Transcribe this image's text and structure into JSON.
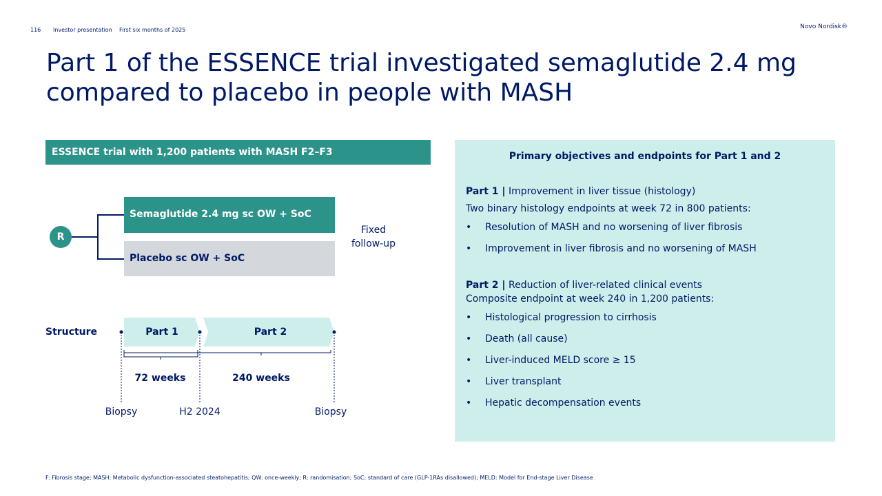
{
  "header": {
    "page_number": "116",
    "doc_type": "Investor presentation",
    "period": "First six months of 2025",
    "brand": "Novo Nordisk®"
  },
  "title": "Part 1 of the ESSENCE trial investigated semaglutide 2.4 mg compared to placebo in people with MASH",
  "trial": {
    "bar_label": "ESSENCE trial with 1,200 patients with MASH F2–F3",
    "randomisation_marker": "R",
    "arms": [
      "Semaglutide 2.4 mg sc OW + SoC",
      "Placebo sc OW + SoC"
    ],
    "followup_line1": "Fixed",
    "followup_line2": "follow-up",
    "structure_label": "Structure",
    "parts": [
      "Part 1",
      "Part 2"
    ],
    "durations": [
      "72 weeks",
      "240 weeks"
    ],
    "milestones": [
      "Biopsy",
      "H2 2024",
      "Biopsy"
    ]
  },
  "objectives": {
    "heading": "Primary objectives and endpoints for Part 1 and 2",
    "part1": {
      "label": "Part 1 |",
      "title": "Improvement in liver tissue (histology)",
      "intro": "Two binary histology endpoints at week 72 in 800 patients:",
      "bullets": [
        "Resolution of MASH and no worsening of liver fibrosis",
        "Improvement in liver fibrosis and no worsening of MASH"
      ]
    },
    "part2": {
      "label": "Part 2 |",
      "title": "Reduction of liver-related clinical events",
      "intro": "Composite endpoint at week 240 in 1,200 patients:",
      "bullets": [
        "Histological progression to cirrhosis",
        "Death (all cause)",
        "Liver-induced MELD score ≥ 15",
        "Liver transplant",
        "Hepatic decompensation events"
      ]
    },
    "bullet_symbol": "•"
  },
  "footnote": "F: Fibrosis stage; MASH: Metabolic dysfunction-associated steatohepatitis; QW: once-weekly; R: randomisation; SoC: standard of care (GLP-1RAs disallowed); MELD: Model for End-stage Liver Disease",
  "colors": {
    "navy": "#001965",
    "teal": "#2b938a",
    "light_teal": "#cdeeeb",
    "grey": "#d4d7dc"
  }
}
